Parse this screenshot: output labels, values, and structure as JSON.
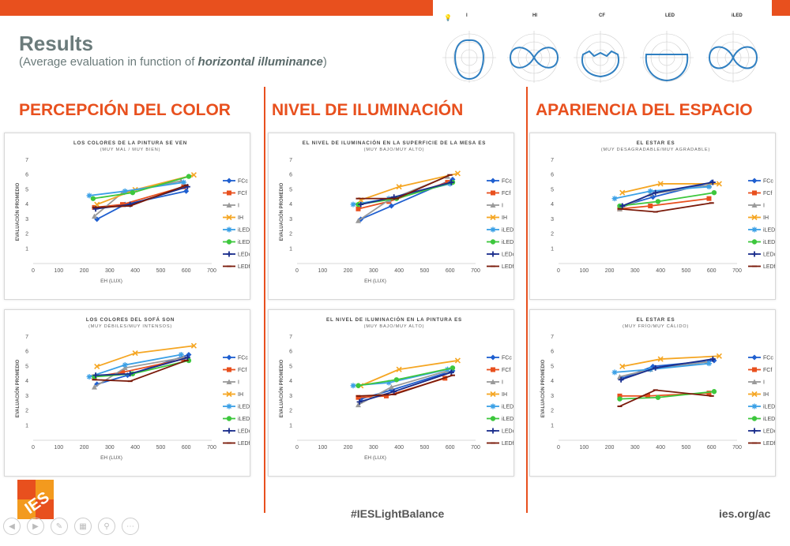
{
  "header": {
    "title": "Results",
    "subtitle_pre": "(Average evaluation in function of ",
    "subtitle_em": "horizontal illuminance",
    "subtitle_post": ")"
  },
  "polar_labels": [
    "I",
    "HI",
    "CF",
    "LED",
    "iLED"
  ],
  "sections": [
    "PERCEPCIÓN DEL COLOR",
    "NIVEL DE ILUMINACIÓN",
    "APARIENCIA DEL ESPACIO"
  ],
  "footer": {
    "hashtag": "#IESLightBalance",
    "url": "ies.org/ac",
    "logo": "IES"
  },
  "series_styles": [
    {
      "name": "FCc",
      "color": "#1f5fd0",
      "marker": "diamond"
    },
    {
      "name": "FCf",
      "color": "#e8501e",
      "marker": "square"
    },
    {
      "name": "I",
      "color": "#9a9a9a",
      "marker": "triangle"
    },
    {
      "name": "IH",
      "color": "#f5a623",
      "marker": "x"
    },
    {
      "name": "iLEDc",
      "color": "#3ba0e6",
      "marker": "star"
    },
    {
      "name": "iLEDf",
      "color": "#3dc73d",
      "marker": "circle"
    },
    {
      "name": "LEDc",
      "color": "#1a2d8c",
      "marker": "plus"
    },
    {
      "name": "LEDf",
      "color": "#7a1a0a",
      "marker": "dash"
    }
  ],
  "chart_data": [
    {
      "type": "line",
      "title": "LOS COLORES DE LA PINTURA SE VEN",
      "subtitle": "(MUY MAL / MUY BIEN)",
      "xlabel": "EH (LUX)",
      "ylabel": "EVALUACIÓN PROMEDIO",
      "xlim": [
        0,
        700
      ],
      "ylim": [
        0,
        7
      ],
      "xticks": [
        0,
        100,
        200,
        300,
        400,
        500,
        600,
        700
      ],
      "yticks": [
        1,
        2,
        3,
        4,
        5,
        6,
        7
      ],
      "legend": "right",
      "series": [
        {
          "name": "FCc",
          "x": [
            250,
            360,
            600
          ],
          "y": [
            3.0,
            4.0,
            4.9
          ]
        },
        {
          "name": "FCf",
          "x": [
            240,
            350,
            590
          ],
          "y": [
            3.8,
            4.0,
            5.2
          ]
        },
        {
          "name": "I",
          "x": [
            240,
            350,
            580
          ],
          "y": [
            3.2,
            4.8,
            5.6
          ]
        },
        {
          "name": "IH",
          "x": [
            250,
            400,
            630
          ],
          "y": [
            4.0,
            5.0,
            6.0
          ]
        },
        {
          "name": "iLEDc",
          "x": [
            220,
            360,
            590
          ],
          "y": [
            4.6,
            4.9,
            5.5
          ]
        },
        {
          "name": "iLEDf",
          "x": [
            235,
            390,
            610
          ],
          "y": [
            4.4,
            4.8,
            5.9
          ]
        },
        {
          "name": "LEDc",
          "x": [
            245,
            380,
            605
          ],
          "y": [
            3.7,
            4.0,
            5.2
          ]
        },
        {
          "name": "LEDf",
          "x": [
            240,
            380,
            600
          ],
          "y": [
            3.8,
            3.9,
            5.3
          ]
        }
      ]
    },
    {
      "type": "line",
      "title": "EL NIVEL DE ILUMINACIÓN EN LA SUPERFICIE DE LA MESA ES",
      "subtitle": "(MUY BAJO/MUY ALTO)",
      "xlabel": "EH (LUX)",
      "ylabel": "EVALUACIÓN PROMEDIO",
      "xlim": [
        0,
        700
      ],
      "ylim": [
        0,
        7
      ],
      "xticks": [
        0,
        100,
        200,
        300,
        400,
        500,
        600,
        700
      ],
      "yticks": [
        1,
        2,
        3,
        4,
        5,
        6,
        7
      ],
      "legend": "right",
      "series": [
        {
          "name": "FCc",
          "x": [
            250,
            370,
            610
          ],
          "y": [
            3.0,
            3.9,
            5.7
          ]
        },
        {
          "name": "FCf",
          "x": [
            240,
            360,
            590
          ],
          "y": [
            3.7,
            4.2,
            5.5
          ]
        },
        {
          "name": "I",
          "x": [
            240,
            360,
            590
          ],
          "y": [
            2.9,
            4.3,
            5.9
          ]
        },
        {
          "name": "IH",
          "x": [
            250,
            400,
            630
          ],
          "y": [
            4.3,
            5.2,
            6.1
          ]
        },
        {
          "name": "iLEDc",
          "x": [
            220,
            360,
            600
          ],
          "y": [
            4.0,
            4.4,
            5.4
          ]
        },
        {
          "name": "iLEDf",
          "x": [
            240,
            390,
            610
          ],
          "y": [
            4.0,
            4.4,
            5.5
          ]
        },
        {
          "name": "LEDc",
          "x": [
            250,
            380,
            605
          ],
          "y": [
            4.0,
            4.5,
            5.5
          ]
        },
        {
          "name": "LEDf",
          "x": [
            240,
            390,
            600
          ],
          "y": [
            4.4,
            4.4,
            6.0
          ]
        }
      ]
    },
    {
      "type": "line",
      "title": "EL ESTAR ES",
      "subtitle": "(MUY DESAGRADABLE/MUY AGRADABLE)",
      "xlabel": "",
      "ylabel": "",
      "xlim": [
        0,
        700
      ],
      "ylim": [
        0,
        7
      ],
      "xticks": [
        0,
        100,
        200,
        300,
        400,
        500,
        600,
        700
      ],
      "yticks": [
        1,
        2,
        3,
        4,
        5,
        6,
        7
      ],
      "legend": "right",
      "series": [
        {
          "name": "FCc",
          "x": [
            250,
            370,
            600
          ],
          "y": [
            3.9,
            4.5,
            5.5
          ]
        },
        {
          "name": "FCf",
          "x": [
            240,
            360,
            590
          ],
          "y": [
            3.7,
            3.9,
            4.4
          ]
        },
        {
          "name": "I",
          "x": [
            240,
            360,
            590
          ],
          "y": [
            3.7,
            4.7,
            5.3
          ]
        },
        {
          "name": "IH",
          "x": [
            250,
            400,
            630
          ],
          "y": [
            4.8,
            5.4,
            5.4
          ]
        },
        {
          "name": "iLEDc",
          "x": [
            220,
            360,
            590
          ],
          "y": [
            4.4,
            4.9,
            5.2
          ]
        },
        {
          "name": "iLEDf",
          "x": [
            240,
            390,
            610
          ],
          "y": [
            3.9,
            4.2,
            4.8
          ]
        },
        {
          "name": "LEDc",
          "x": [
            250,
            380,
            605
          ],
          "y": [
            3.9,
            4.8,
            5.5
          ]
        },
        {
          "name": "LEDf",
          "x": [
            240,
            380,
            600
          ],
          "y": [
            3.7,
            3.5,
            4.1
          ]
        }
      ]
    },
    {
      "type": "line",
      "title": "LOS COLORES DEL SOFÁ SON",
      "subtitle": "(MUY DÉBILES/MUY INTENSOS)",
      "xlabel": "EH (LUX)",
      "ylabel": "EVALUACIÓN PROMEDIO",
      "xlim": [
        0,
        700
      ],
      "ylim": [
        0,
        7
      ],
      "xticks": [
        0,
        100,
        200,
        300,
        400,
        500,
        600,
        700
      ],
      "yticks": [
        1,
        2,
        3,
        4,
        5,
        6,
        7
      ],
      "legend": "right",
      "series": [
        {
          "name": "FCc",
          "x": [
            250,
            370,
            610
          ],
          "y": [
            3.8,
            4.4,
            5.8
          ]
        },
        {
          "name": "FCf",
          "x": [
            240,
            350,
            590
          ],
          "y": [
            4.3,
            4.6,
            5.5
          ]
        },
        {
          "name": "I",
          "x": [
            240,
            360,
            590
          ],
          "y": [
            3.6,
            4.9,
            5.6
          ]
        },
        {
          "name": "IH",
          "x": [
            250,
            400,
            630
          ],
          "y": [
            5.0,
            5.9,
            6.4
          ]
        },
        {
          "name": "iLEDc",
          "x": [
            220,
            360,
            580
          ],
          "y": [
            4.3,
            5.1,
            5.8
          ]
        },
        {
          "name": "iLEDf",
          "x": [
            240,
            390,
            610
          ],
          "y": [
            4.3,
            4.5,
            5.4
          ]
        },
        {
          "name": "LEDc",
          "x": [
            245,
            380,
            605
          ],
          "y": [
            4.4,
            4.5,
            5.6
          ]
        },
        {
          "name": "LEDf",
          "x": [
            240,
            380,
            600
          ],
          "y": [
            4.1,
            4.0,
            5.4
          ]
        }
      ]
    },
    {
      "type": "line",
      "title": "EL NIVEL DE ILUMINACIÓN EN LA PINTURA ES",
      "subtitle": "(MUY BAJO/MUY ALTO)",
      "xlabel": "EH (LUX)",
      "ylabel": "EVALUACIÓN PROMEDIO",
      "xlim": [
        0,
        700
      ],
      "ylim": [
        0,
        7
      ],
      "xticks": [
        0,
        100,
        200,
        300,
        400,
        500,
        600,
        700
      ],
      "yticks": [
        1,
        2,
        3,
        4,
        5,
        6,
        7
      ],
      "legend": "right",
      "series": [
        {
          "name": "FCc",
          "x": [
            250,
            370,
            610
          ],
          "y": [
            2.8,
            3.4,
            4.7
          ]
        },
        {
          "name": "FCf",
          "x": [
            240,
            350,
            580
          ],
          "y": [
            2.9,
            3.0,
            4.2
          ]
        },
        {
          "name": "I",
          "x": [
            240,
            370,
            590
          ],
          "y": [
            2.4,
            3.6,
            4.7
          ]
        },
        {
          "name": "IH",
          "x": [
            250,
            400,
            630
          ],
          "y": [
            3.7,
            4.8,
            5.4
          ]
        },
        {
          "name": "iLEDc",
          "x": [
            220,
            360,
            590
          ],
          "y": [
            3.7,
            3.9,
            4.8
          ]
        },
        {
          "name": "iLEDf",
          "x": [
            240,
            390,
            610
          ],
          "y": [
            3.7,
            4.1,
            4.9
          ]
        },
        {
          "name": "LEDc",
          "x": [
            245,
            380,
            605
          ],
          "y": [
            2.6,
            3.3,
            4.6
          ]
        },
        {
          "name": "LEDf",
          "x": [
            240,
            380,
            610
          ],
          "y": [
            3.0,
            3.1,
            4.4
          ]
        }
      ]
    },
    {
      "type": "line",
      "title": "EL ESTAR ES",
      "subtitle": "(MUY FRÍO/MUY CÁLIDO)",
      "xlabel": "",
      "ylabel": "EVALUACIÓN PROMEDIO",
      "xlim": [
        0,
        700
      ],
      "ylim": [
        0,
        7
      ],
      "xticks": [
        0,
        100,
        200,
        300,
        400,
        500,
        600,
        700
      ],
      "yticks": [
        1,
        2,
        3,
        4,
        5,
        6,
        7
      ],
      "legend": "right",
      "series": [
        {
          "name": "FCc",
          "x": [
            250,
            370,
            610
          ],
          "y": [
            4.2,
            5.0,
            5.4
          ]
        },
        {
          "name": "FCf",
          "x": [
            240,
            350,
            590
          ],
          "y": [
            3.0,
            3.0,
            3.2
          ]
        },
        {
          "name": "I",
          "x": [
            240,
            360,
            580
          ],
          "y": [
            4.3,
            4.8,
            5.3
          ]
        },
        {
          "name": "IH",
          "x": [
            250,
            400,
            630
          ],
          "y": [
            5.0,
            5.5,
            5.7
          ]
        },
        {
          "name": "iLEDc",
          "x": [
            220,
            360,
            590
          ],
          "y": [
            4.6,
            4.8,
            5.2
          ]
        },
        {
          "name": "iLEDf",
          "x": [
            240,
            390,
            610
          ],
          "y": [
            2.8,
            2.9,
            3.3
          ]
        },
        {
          "name": "LEDc",
          "x": [
            245,
            380,
            605
          ],
          "y": [
            4.1,
            4.9,
            5.5
          ]
        },
        {
          "name": "LEDf",
          "x": [
            240,
            380,
            600
          ],
          "y": [
            2.3,
            3.4,
            3.0
          ]
        }
      ]
    }
  ]
}
